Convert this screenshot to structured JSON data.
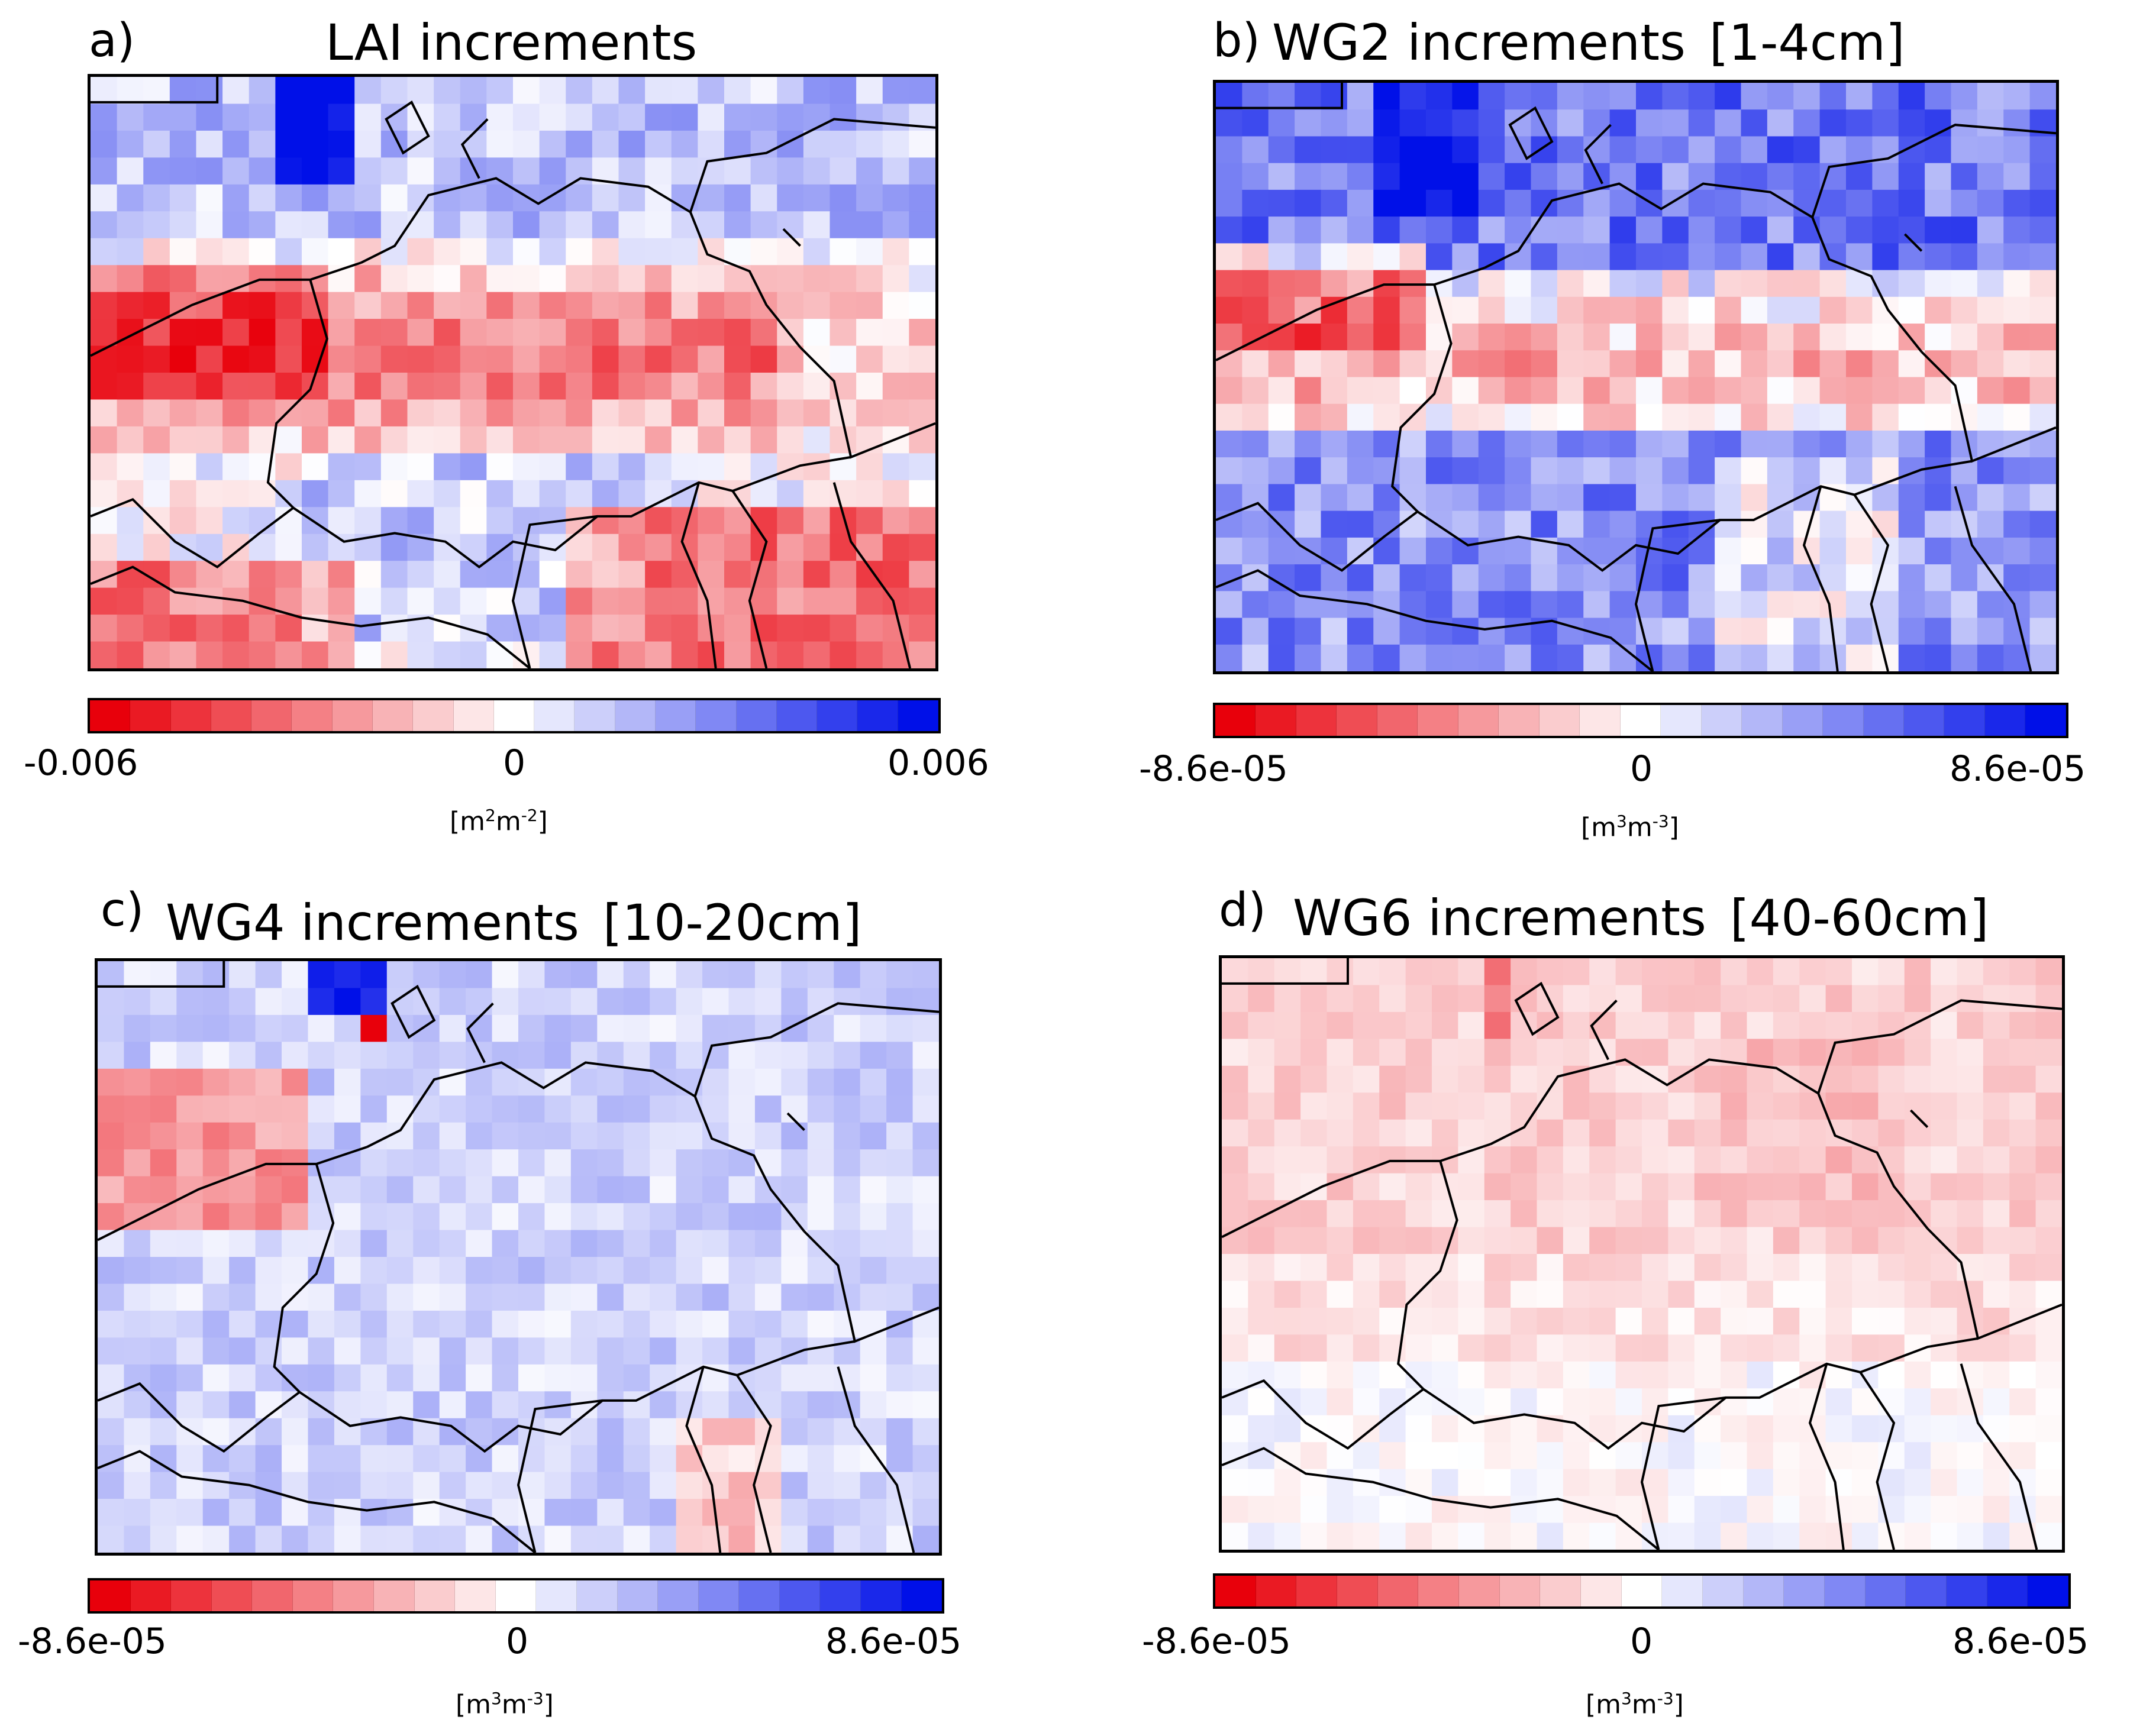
{
  "figure": {
    "panels": [
      {
        "id": "a",
        "letter": "a)",
        "title": "LAI increments",
        "depth": "",
        "variable": "LAI",
        "colorbar": {
          "min_label": "-0.006",
          "zero_label": "0",
          "max_label": "0.006",
          "vmin": -0.006,
          "vmax": 0.006,
          "unit_base1": "m",
          "unit_exp1": "2",
          "unit_base2": "m",
          "unit_exp2": "-2"
        },
        "pattern": "lai"
      },
      {
        "id": "b",
        "letter": "b)",
        "title": "WG2 increments",
        "depth": "[1-4cm]",
        "variable": "WG2",
        "colorbar": {
          "min_label": "-8.6e-05",
          "zero_label": "0",
          "max_label": "8.6e-05",
          "vmin": -8.6e-05,
          "vmax": 8.6e-05,
          "unit_base1": "m",
          "unit_exp1": "3",
          "unit_base2": "m",
          "unit_exp2": "-3"
        },
        "pattern": "wg2"
      },
      {
        "id": "c",
        "letter": "c)",
        "title": "WG4 increments",
        "depth": "[10-20cm]",
        "variable": "WG4",
        "colorbar": {
          "min_label": "-8.6e-05",
          "zero_label": "0",
          "max_label": "8.6e-05",
          "vmin": -8.6e-05,
          "vmax": 8.6e-05,
          "unit_base1": "m",
          "unit_exp1": "3",
          "unit_base2": "m",
          "unit_exp2": "-3"
        },
        "pattern": "wg4"
      },
      {
        "id": "d",
        "letter": "d)",
        "title": "WG6 increments",
        "depth": "[40-60cm]",
        "variable": "WG6",
        "colorbar": {
          "min_label": "-8.6e-05",
          "zero_label": "0",
          "max_label": "8.6e-05",
          "vmin": -8.6e-05,
          "vmax": 8.6e-05,
          "unit_base1": "m",
          "unit_exp1": "3",
          "unit_base2": "m",
          "unit_exp2": "-3"
        },
        "pattern": "wg6"
      }
    ],
    "colors": {
      "negative": "#e8000b",
      "zero": "#ffffff",
      "positive": "#0010e8",
      "border": "#000000"
    },
    "colorbar_segments": 21
  }
}
